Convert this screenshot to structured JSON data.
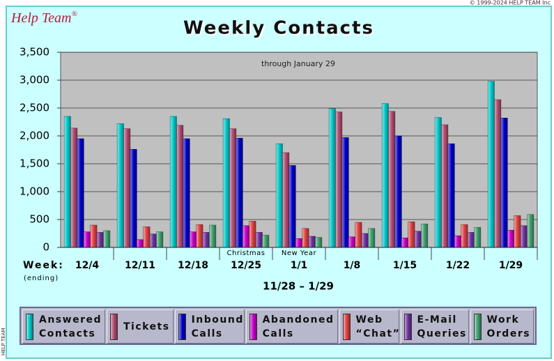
{
  "copyright": "© 1999-2024 HELP TEAM Inc",
  "side_label": "HELP TEAM",
  "logo": "Help Team",
  "logo_mark": "®",
  "chart_data": {
    "type": "bar",
    "title": "Weekly Contacts",
    "subtitle": "through January 29",
    "x_label": "Week:",
    "x_label_note": "(ending)",
    "date_range": "11/28 – 1/29",
    "categories": [
      "12/4",
      "12/11",
      "12/18",
      "12/25",
      "1/1",
      "1/8",
      "1/15",
      "1/22",
      "1/29"
    ],
    "annotations": [
      {
        "text": "Christmas",
        "category": "12/25"
      },
      {
        "text": "New Year",
        "category": "1/1"
      }
    ],
    "series": [
      {
        "name": "Answered Contacts",
        "color": "#00c8c8",
        "values": [
          2350,
          2220,
          2350,
          2310,
          1860,
          2490,
          2580,
          2330,
          2980
        ]
      },
      {
        "name": "Tickets",
        "color": "#b04a6e",
        "values": [
          2140,
          2130,
          2190,
          2130,
          1700,
          2430,
          2440,
          2200,
          2650
        ]
      },
      {
        "name": "Inbound Calls",
        "color": "#0000c8",
        "values": [
          1950,
          1760,
          1950,
          1960,
          1470,
          1970,
          2000,
          1860,
          2320
        ]
      },
      {
        "name": "Abandoned Calls",
        "color": "#c800c8",
        "values": [
          280,
          140,
          280,
          390,
          160,
          190,
          170,
          210,
          310
        ]
      },
      {
        "name": "Web “Chat”",
        "color": "#e04040",
        "values": [
          400,
          370,
          410,
          470,
          340,
          450,
          460,
          410,
          570
        ]
      },
      {
        "name": "E-Mail Queries",
        "color": "#7030a0",
        "values": [
          270,
          240,
          270,
          270,
          200,
          250,
          290,
          270,
          390
        ]
      },
      {
        "name": "Work Orders",
        "color": "#40a070",
        "values": [
          300,
          280,
          400,
          220,
          180,
          340,
          420,
          360,
          590
        ]
      }
    ],
    "ylim": [
      0,
      3500
    ],
    "yticks": [
      0,
      {
        "value": 500,
        "label": "500"
      },
      {
        "value": 1000,
        "label": "1,000"
      },
      {
        "value": 1500,
        "label": "1,500"
      },
      {
        "value": 2000,
        "label": "2,000"
      },
      {
        "value": 2500,
        "label": "2,500"
      },
      {
        "value": 3000,
        "label": "3,000"
      },
      {
        "value": 3500,
        "label": "3,500"
      }
    ],
    "grid": true
  }
}
